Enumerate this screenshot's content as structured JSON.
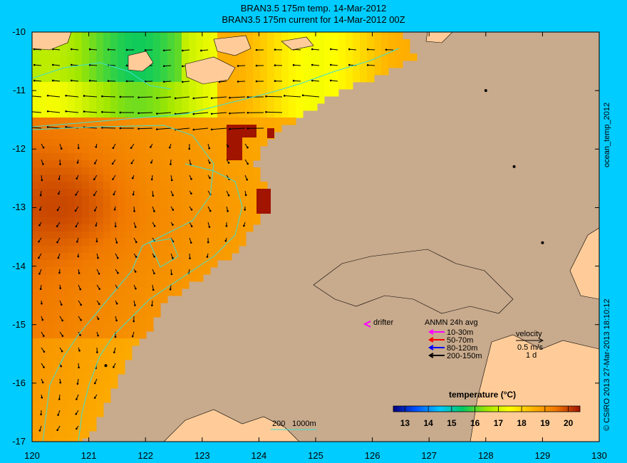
{
  "title_line1": "BRAN3.5 175m temp. 14-Mar-2012",
  "title_line2": "BRAN3.5 175m current for 14-Mar-2012 00Z",
  "side_label_top": "ocean_temp_2012",
  "side_label_bottom": "© CSIRO 2013   27-Mar-2013 18:10:12",
  "colors": {
    "background": "#00ccff",
    "land": "#c8aa8c",
    "coast_light": "#ffcc99",
    "contour": "#40e0d0"
  },
  "chart_data": {
    "type": "heatmap",
    "x_ticks": [
      "120",
      "121",
      "122",
      "123",
      "124",
      "125",
      "126",
      "127",
      "128",
      "129",
      "130"
    ],
    "y_ticks": [
      "-10",
      "-11",
      "-12",
      "-13",
      "-14",
      "-15",
      "-16",
      "-17"
    ],
    "xlim": [
      120,
      130
    ],
    "ylim": [
      -17,
      -10
    ],
    "colorbar": {
      "label": "temperature (°C)",
      "ticks": [
        "13",
        "14",
        "15",
        "16",
        "17",
        "18",
        "19",
        "20"
      ],
      "range": [
        12.5,
        20.5
      ]
    },
    "contour_legend": {
      "label_200": "200",
      "label_1000": "1000m"
    },
    "legend": {
      "drifter_label": "drifter",
      "anmn_title": "ANMN 24h avg",
      "anmn_items": [
        {
          "label": "10-30m",
          "color": "#ff00ff"
        },
        {
          "label": "50-70m",
          "color": "#ff0000"
        },
        {
          "label": "80-120m",
          "color": "#0000ff"
        },
        {
          "label": "200-150m",
          "color": "#000000"
        }
      ],
      "velocity_title": "velocity",
      "velocity_scale": "0.5 m/s",
      "velocity_time": "1 d"
    },
    "stations": [
      {
        "lon": 128.0,
        "lat": -11.0
      },
      {
        "lon": 128.5,
        "lat": -12.3
      },
      {
        "lon": 129.0,
        "lat": -13.6
      },
      {
        "lon": 121.3,
        "lat": -15.7
      }
    ]
  }
}
